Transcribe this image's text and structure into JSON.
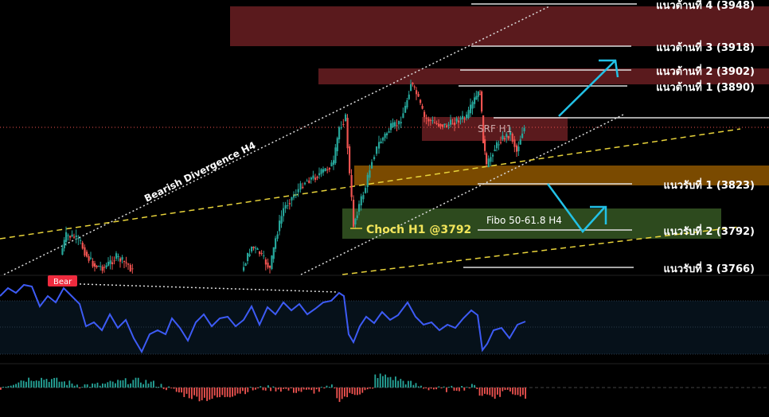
{
  "chart_data": [
    {
      "type": "candlestick",
      "title": "",
      "resistance_levels": [
        {
          "label": "แนวต้านที่ 4 (3948)",
          "price": 3948
        },
        {
          "label": "แนวต้านที่ 3 (3918)",
          "price": 3918
        },
        {
          "label": "แนวต้านที่ 2 (3902)",
          "price": 3902
        },
        {
          "label": "แนวต้านที่ 1 (3890)",
          "price": 3890
        }
      ],
      "support_levels": [
        {
          "label": "แนวรับที่ 1 (3823)",
          "price": 3823
        },
        {
          "label": "แนวรับที่ 2 (3792)",
          "price": 3792
        },
        {
          "label": "แนวรับที่ 3 (3766)",
          "price": 3766
        }
      ],
      "annotations": {
        "trendline": "Bearish Divergence H4",
        "supply_zone": "SRF H1",
        "fibo_zone": "Fibo 50-61.8 H4",
        "choch": "Choch H1 @3792",
        "rsi_signal": "Bear"
      },
      "colors": {
        "bull": "#26a69a",
        "bear": "#ef5350",
        "resistance_zone": "#5a1a1d",
        "support_zone": "#7a4a00",
        "fibo_zone": "#2d4a1e",
        "arrow": "#22c1e6",
        "rsi_line": "#3d5bf5"
      }
    }
  ]
}
